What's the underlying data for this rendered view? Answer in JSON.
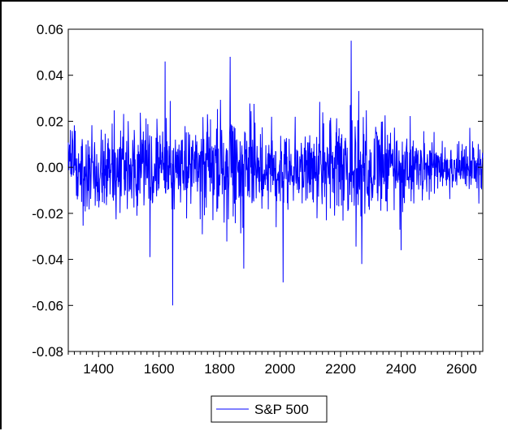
{
  "chart_data": {
    "type": "line",
    "title": "",
    "xlabel": "",
    "ylabel": "",
    "xlim": [
      1300,
      2670
    ],
    "ylim": [
      -0.08,
      0.06
    ],
    "xticks": [
      1400,
      1600,
      1800,
      2000,
      2200,
      2400,
      2600
    ],
    "xtick_labels": [
      "1400",
      "1600",
      "1800",
      "2000",
      "2200",
      "2400",
      "2600"
    ],
    "yticks": [
      0.06,
      0.04,
      0.02,
      0.0,
      -0.02,
      -0.04,
      -0.06,
      -0.08
    ],
    "ytick_labels": [
      "0.06",
      "0.04",
      "0.02",
      "0.00",
      "-0.02",
      "-0.04",
      "-0.06",
      "-0.08"
    ],
    "x_minor_tick_step": 20,
    "grid": false,
    "legend_position": "bottom-center",
    "series": [
      {
        "name": "S&P 500",
        "color": "#0000ff",
        "x_start": 1300,
        "x_end": 2670,
        "notable_points": [
          {
            "x": 1620,
            "y": 0.046
          },
          {
            "x": 1645,
            "y": -0.06
          },
          {
            "x": 1570,
            "y": -0.039
          },
          {
            "x": 1835,
            "y": 0.048
          },
          {
            "x": 1880,
            "y": -0.044
          },
          {
            "x": 2010,
            "y": -0.05
          },
          {
            "x": 2235,
            "y": 0.055
          },
          {
            "x": 2270,
            "y": -0.042
          },
          {
            "x": 2400,
            "y": -0.036
          }
        ],
        "volatility_profile": [
          [
            1300,
            0.009
          ],
          [
            1400,
            0.009
          ],
          [
            1500,
            0.009
          ],
          [
            1600,
            0.01
          ],
          [
            1700,
            0.008
          ],
          [
            1780,
            0.011
          ],
          [
            1850,
            0.012
          ],
          [
            1950,
            0.009
          ],
          [
            2050,
            0.009
          ],
          [
            2150,
            0.01
          ],
          [
            2200,
            0.013
          ],
          [
            2260,
            0.014
          ],
          [
            2320,
            0.011
          ],
          [
            2400,
            0.009
          ],
          [
            2500,
            0.006
          ],
          [
            2600,
            0.006
          ],
          [
            2670,
            0.006
          ]
        ]
      }
    ]
  }
}
